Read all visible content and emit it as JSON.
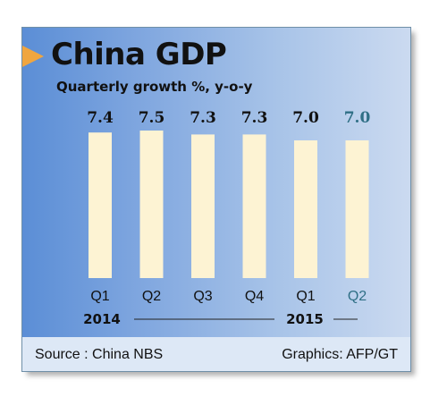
{
  "chart_data": {
    "type": "bar",
    "title": "China GDP",
    "subtitle": "Quarterly growth %, y-o-y",
    "categories": [
      "Q1",
      "Q2",
      "Q3",
      "Q4",
      "Q1",
      "Q2"
    ],
    "years": [
      {
        "label": "2014",
        "quarters": [
          "Q1",
          "Q2",
          "Q3",
          "Q4"
        ]
      },
      {
        "label": "2015",
        "quarters": [
          "Q1",
          "Q2"
        ]
      }
    ],
    "values": [
      7.4,
      7.5,
      7.3,
      7.3,
      7.0,
      7.0
    ],
    "value_labels": [
      "7.4",
      "7.5",
      "7.3",
      "7.3",
      "7.0",
      "7.0"
    ],
    "highlight_index": 5,
    "ylim": [
      0,
      7.5
    ],
    "grid": false,
    "colors": {
      "bar": "#fdf3d3",
      "label": "#111111",
      "highlight_label": "#2f6f86"
    }
  },
  "source": "Source : China NBS",
  "credit": "Graphics: AFP/GT"
}
